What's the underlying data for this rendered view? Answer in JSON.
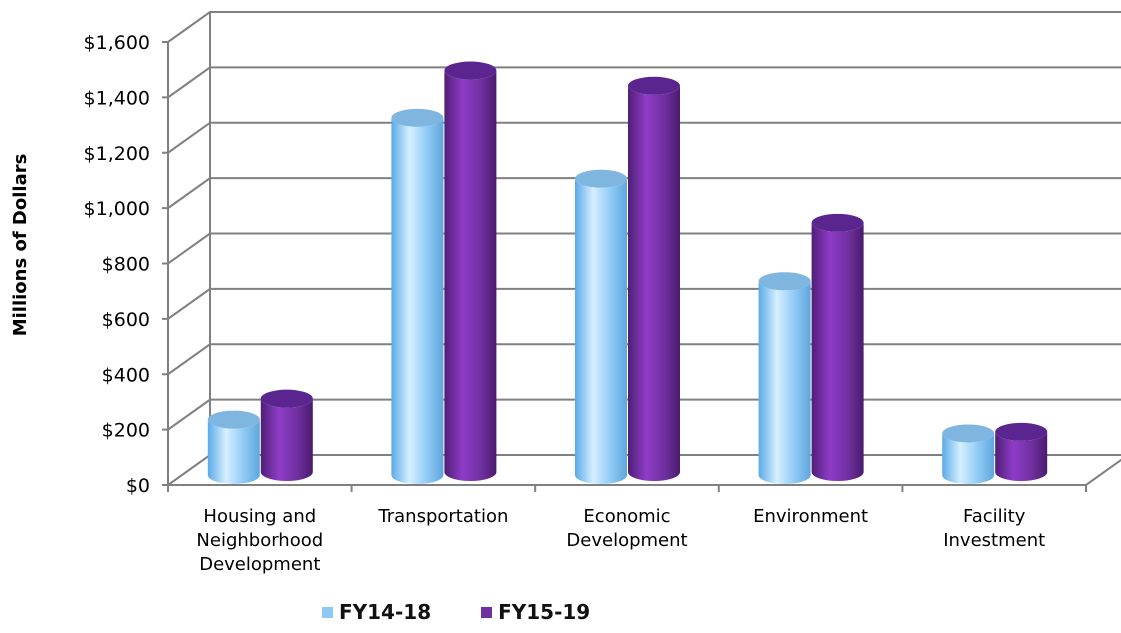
{
  "chart_data": {
    "type": "bar",
    "title": "",
    "xlabel": "",
    "ylabel": "Millions of Dollars",
    "ylim": [
      0,
      1600
    ],
    "yticks": [
      0,
      200,
      400,
      600,
      800,
      1000,
      1200,
      1400,
      1600
    ],
    "ytick_labels": [
      "$0",
      "$200",
      "$400",
      "$600",
      "$800",
      "$1,000",
      "$1,200",
      "$1,400",
      "$1,600"
    ],
    "categories": [
      [
        "Housing and",
        "Neighborhood",
        "Development"
      ],
      [
        "Transportation"
      ],
      [
        "Economic",
        "Development"
      ],
      [
        "Environment"
      ],
      [
        "Facility",
        "Investment"
      ]
    ],
    "series": [
      {
        "name": "FY14-18",
        "color": "#8ec9f5",
        "values": [
          200,
          1290,
          1070,
          700,
          150
        ]
      },
      {
        "name": "FY15-19",
        "color": "#7030a0",
        "values": [
          265,
          1450,
          1395,
          900,
          145
        ]
      }
    ],
    "grid": true,
    "legend_position": "bottom",
    "style": "3d-cylinder"
  }
}
